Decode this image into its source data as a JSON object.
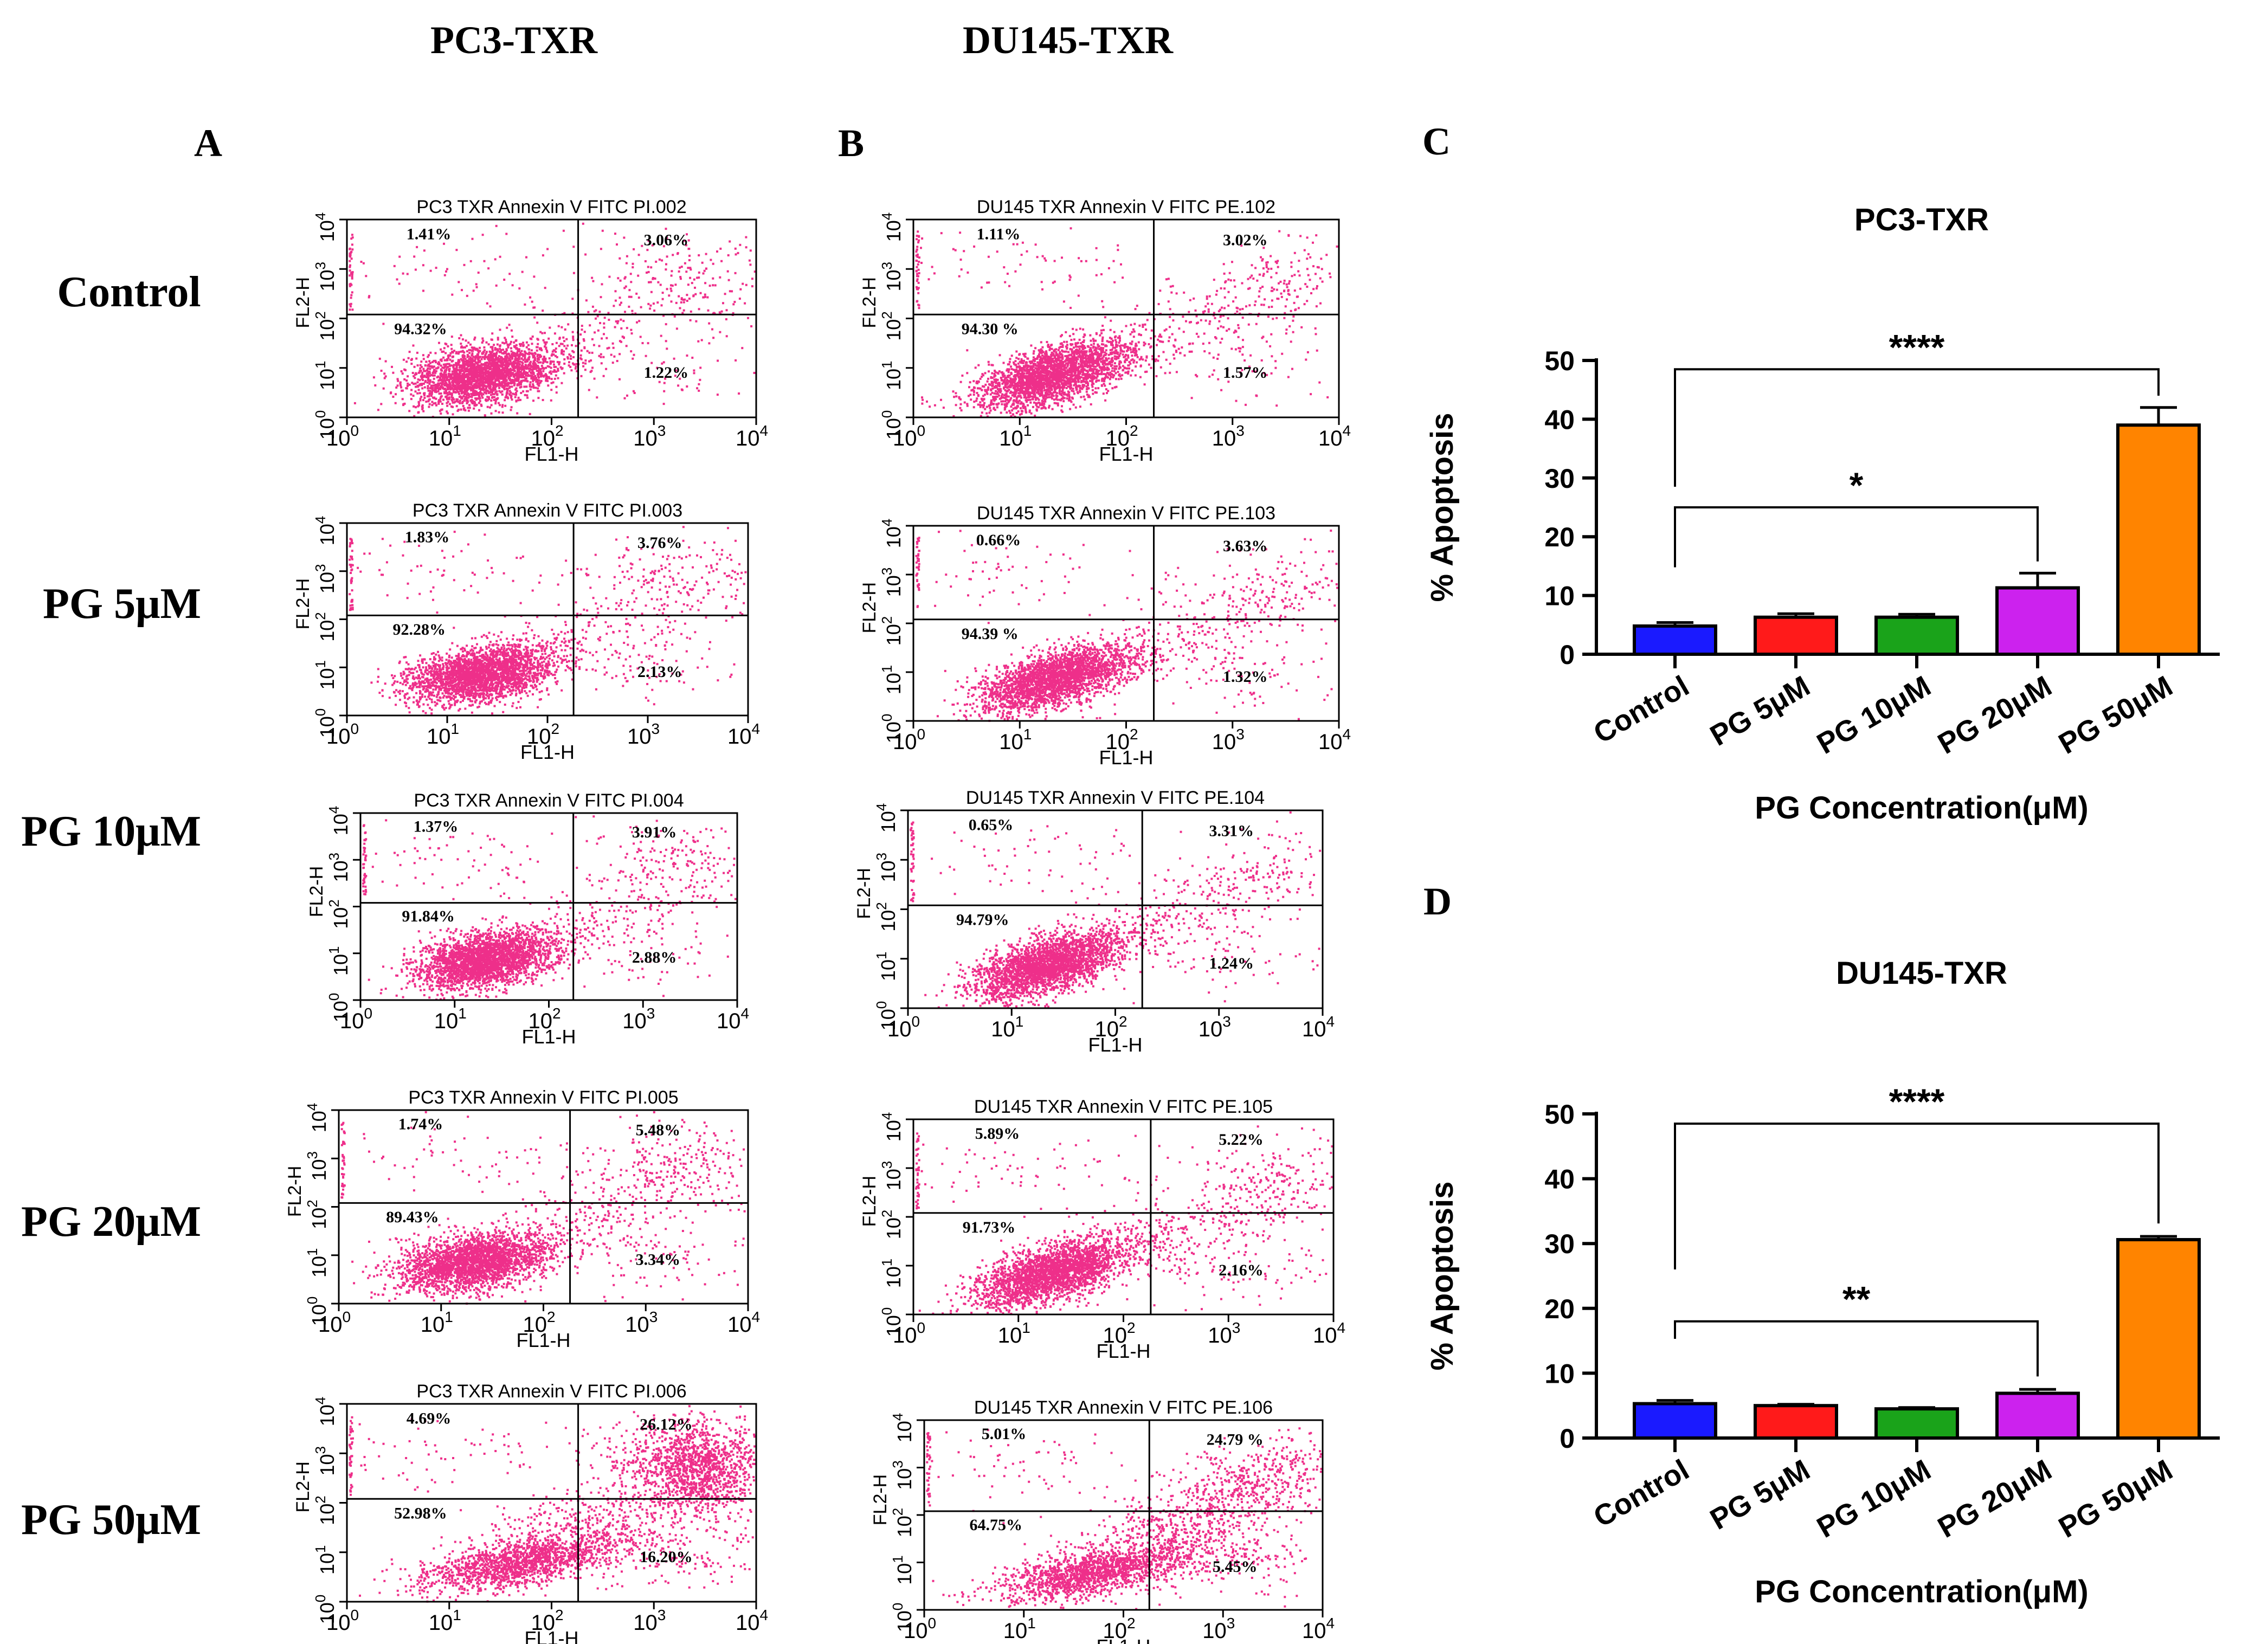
{
  "header": {
    "col_a_title": "PC3-TXR",
    "col_b_title": "DU145-TXR"
  },
  "panel_labels": [
    "A",
    "B",
    "C",
    "D"
  ],
  "row_labels": [
    "Control",
    "PG 5μM",
    "PG 10μM",
    "PG 20μM",
    "PG 50μM"
  ],
  "flow_axes": {
    "xlabel": "FL1-H",
    "ylabel": "FL2-H",
    "tick_labels": [
      "10",
      "10",
      "10",
      "10",
      "10"
    ],
    "tick_exponents": [
      "0",
      "1",
      "2",
      "3",
      "4"
    ],
    "last_tick_exponent_pc3_50": "4"
  },
  "colors": {
    "dots": "#ee2f8a",
    "axis": "#000000",
    "bars": [
      "#1a1aff",
      "#ff1a1a",
      "#1aa31a",
      "#cc22ee",
      "#ff8400"
    ]
  },
  "chart_data": [
    {
      "type": "scatter",
      "panel": "A",
      "cell_line": "PC3-TXR",
      "plots": [
        {
          "title": "PC3 TXR Annexin V FITC PI.002",
          "row": "Control",
          "quadrants": {
            "upper_left": "1.41%",
            "upper_right": "3.06%",
            "lower_left": "94.32%",
            "lower_right": "1.22%"
          }
        },
        {
          "title": "PC3 TXR Annexin V FITC PI.003",
          "row": "PG 5μM",
          "quadrants": {
            "upper_left": "1.83%",
            "upper_right": "3.76%",
            "lower_left": "92.28%",
            "lower_right": "2.13%"
          }
        },
        {
          "title": "PC3 TXR Annexin V FITC PI.004",
          "row": "PG 10μM",
          "quadrants": {
            "upper_left": "1.37%",
            "upper_right": "3.91%",
            "lower_left": "91.84%",
            "lower_right": "2.88%"
          }
        },
        {
          "title": "PC3 TXR Annexin V FITC PI.005",
          "row": "PG 20μM",
          "quadrants": {
            "upper_left": "1.74%",
            "upper_right": "5.48%",
            "lower_left": "89.43%",
            "lower_right": "3.34%"
          }
        },
        {
          "title": "PC3 TXR Annexin V FITC PI.006",
          "row": "PG 50μM",
          "quadrants": {
            "upper_left": "4.69%",
            "upper_right": "26.12%",
            "lower_left": "52.98%",
            "lower_right": "16.20%"
          }
        }
      ]
    },
    {
      "type": "scatter",
      "panel": "B",
      "cell_line": "DU145-TXR",
      "plots": [
        {
          "title": "DU145 TXR Annexin V FITC PE.102",
          "row": "Control",
          "quadrants": {
            "upper_left": "1.11%",
            "upper_right": "3.02%",
            "lower_left": "94.30 %",
            "lower_right": "1.57%"
          }
        },
        {
          "title": "DU145 TXR Annexin V FITC PE.103",
          "row": "PG 5μM",
          "quadrants": {
            "upper_left": "0.66%",
            "upper_right": "3.63%",
            "lower_left": "94.39 %",
            "lower_right": "1.32%"
          }
        },
        {
          "title": "DU145 TXR Annexin V FITC PE.104",
          "row": "PG 10μM",
          "quadrants": {
            "upper_left": "0.65%",
            "upper_right": "3.31%",
            "lower_left": "94.79%",
            "lower_right": "1.24%"
          }
        },
        {
          "title": "DU145 TXR Annexin V FITC PE.105",
          "row": "PG 20μM",
          "quadrants": {
            "upper_left": "5.89%",
            "upper_right": "5.22%",
            "lower_left": "91.73%",
            "lower_right": "2.16%"
          }
        },
        {
          "title": "DU145 TXR Annexin V FITC PE.106",
          "row": "PG 50μM",
          "quadrants": {
            "upper_left": "5.01%",
            "upper_right": "24.79 %",
            "lower_left": "64.75%",
            "lower_right": "5.45%"
          }
        }
      ]
    },
    {
      "type": "bar",
      "panel": "C",
      "title": "PC3-TXR",
      "categories": [
        "Control",
        "PG 5μM",
        "PG 10μM",
        "PG 20μM",
        "PG 50μM"
      ],
      "values": [
        4.8,
        6.3,
        6.3,
        11.3,
        39
      ],
      "errors": [
        0.6,
        0.6,
        0.5,
        2.5,
        3
      ],
      "ylim": [
        0,
        50
      ],
      "yticks": [
        "0",
        "10",
        "20",
        "30",
        "40",
        "50"
      ],
      "ylabel": "% Apoptosis",
      "xlabel": "PG Concentration(μM)",
      "significance": [
        {
          "from": "Control",
          "to": "PG 20μM",
          "label": "*"
        },
        {
          "from": "Control",
          "to": "PG 50μM",
          "label": "****"
        }
      ]
    },
    {
      "type": "bar",
      "panel": "D",
      "title": "DU145-TXR",
      "categories": [
        "Control",
        "PG 5μM",
        "PG 10μM",
        "PG 20μM",
        "PG 50μM"
      ],
      "values": [
        5.3,
        5,
        4.5,
        6.9,
        30.6
      ],
      "errors": [
        0.5,
        0.2,
        0.2,
        0.6,
        0.5
      ],
      "ylim": [
        0,
        50
      ],
      "yticks": [
        "0",
        "10",
        "20",
        "30",
        "40",
        "50"
      ],
      "ylabel": "% Apoptosis",
      "xlabel": "PG Concentration(μM)",
      "significance": [
        {
          "from": "Control",
          "to": "PG 20μM",
          "label": "**"
        },
        {
          "from": "Control",
          "to": "PG 50μM",
          "label": "****"
        }
      ]
    }
  ]
}
